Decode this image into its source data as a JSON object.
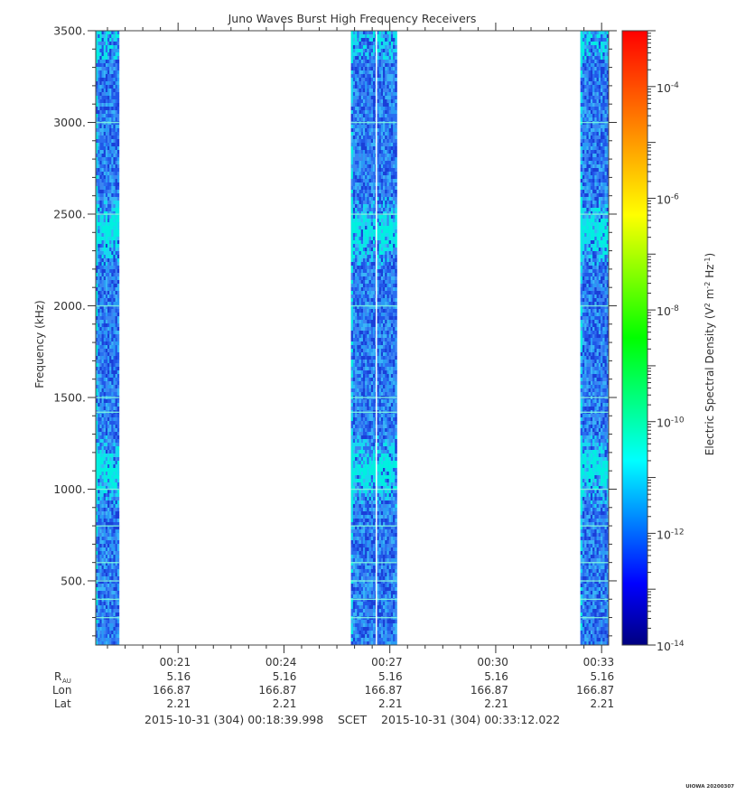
{
  "chart_data": {
    "type": "heatmap",
    "title": "Juno Waves Burst High Frequency Receivers",
    "ylabel": "Frequency (kHz)",
    "ylim": [
      150,
      3500
    ],
    "yticks": [
      "500.",
      "1000.",
      "1500.",
      "2000.",
      "2500.",
      "3000.",
      "3500."
    ],
    "ytick_values": [
      500,
      1000,
      1500,
      2000,
      2500,
      3000,
      3500
    ],
    "xticks": [
      "00:21",
      "00:24",
      "00:27",
      "00:30",
      "00:33"
    ],
    "xtick_minutes": [
      21,
      24,
      27,
      30,
      33
    ],
    "xlim_minutes": [
      18.667,
      33.2
    ],
    "colorbar": {
      "label": "Electric Spectral Density (V² m⁻² Hz⁻¹)",
      "label_base": "Electric Spectral Density (V",
      "log_min": -14,
      "log_max": -3,
      "ticks": [
        {
          "base": "10",
          "exp": "-4",
          "value": -4
        },
        {
          "base": "10",
          "exp": "-6",
          "value": -6
        },
        {
          "base": "10",
          "exp": "-8",
          "value": -8
        },
        {
          "base": "10",
          "exp": "-10",
          "value": -10
        },
        {
          "base": "10",
          "exp": "-12",
          "value": -12
        },
        {
          "base": "10",
          "exp": "-14",
          "value": -14
        }
      ],
      "colors": [
        "#000080",
        "#0000ff",
        "#0080ff",
        "#00ffff",
        "#00ff80",
        "#00ff00",
        "#80ff00",
        "#ffff00",
        "#ffaa00",
        "#ff5500",
        "#ff0000"
      ]
    },
    "bursts": [
      {
        "start_minute": 18.67,
        "end_minute": 19.33
      },
      {
        "start_minute": 25.9,
        "end_minute": 27.2
      },
      {
        "start_minute": 32.4,
        "end_minute": 33.2
      }
    ],
    "enhanced_bands_khz": [
      {
        "low": 2250,
        "high": 2550
      },
      {
        "low": 950,
        "high": 1250
      }
    ],
    "line_frequencies_khz": [
      3000,
      2500,
      2000,
      1500,
      1420,
      1000,
      800,
      600,
      500,
      400,
      300
    ]
  },
  "ephemeris": {
    "labels": {
      "r": "R",
      "r_sub": "AU",
      "lon": "Lon",
      "lat": "Lat"
    },
    "columns": [
      {
        "time": "00:21",
        "r": "5.16",
        "lon": "166.87",
        "lat": "2.21"
      },
      {
        "time": "00:24",
        "r": "5.16",
        "lon": "166.87",
        "lat": "2.21"
      },
      {
        "time": "00:27",
        "r": "5.16",
        "lon": "166.87",
        "lat": "2.21"
      },
      {
        "time": "00:30",
        "r": "5.16",
        "lon": "166.87",
        "lat": "2.21"
      },
      {
        "time": "00:33",
        "r": "5.16",
        "lon": "166.87",
        "lat": "2.21"
      }
    ]
  },
  "footer": {
    "start": "2015-10-31 (304) 00:18:39.998",
    "scet": "SCET",
    "end": "2015-10-31 (304) 00:33:12.022"
  },
  "credit": "UIOWA 20200307"
}
